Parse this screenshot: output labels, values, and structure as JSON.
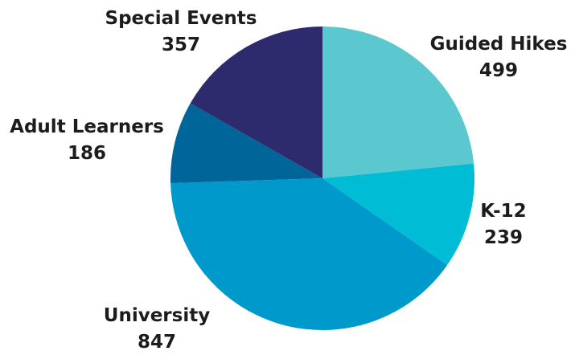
{
  "chart_data": {
    "type": "pie",
    "title": "",
    "slices": [
      {
        "label": "Guided Hikes",
        "value": 499,
        "color": "#5bc8cf"
      },
      {
        "label": "K-12",
        "value": 239,
        "color": "#00bcd4"
      },
      {
        "label": "University",
        "value": 847,
        "color": "#0099cc"
      },
      {
        "label": "Adult Learners",
        "value": 186,
        "color": "#006699"
      },
      {
        "label": "Special Events",
        "value": 357,
        "color": "#2e2a6e"
      }
    ],
    "start_angle": "12 o'clock",
    "direction": "clockwise",
    "legend": "none",
    "data_labels": "outside, category name above value"
  }
}
